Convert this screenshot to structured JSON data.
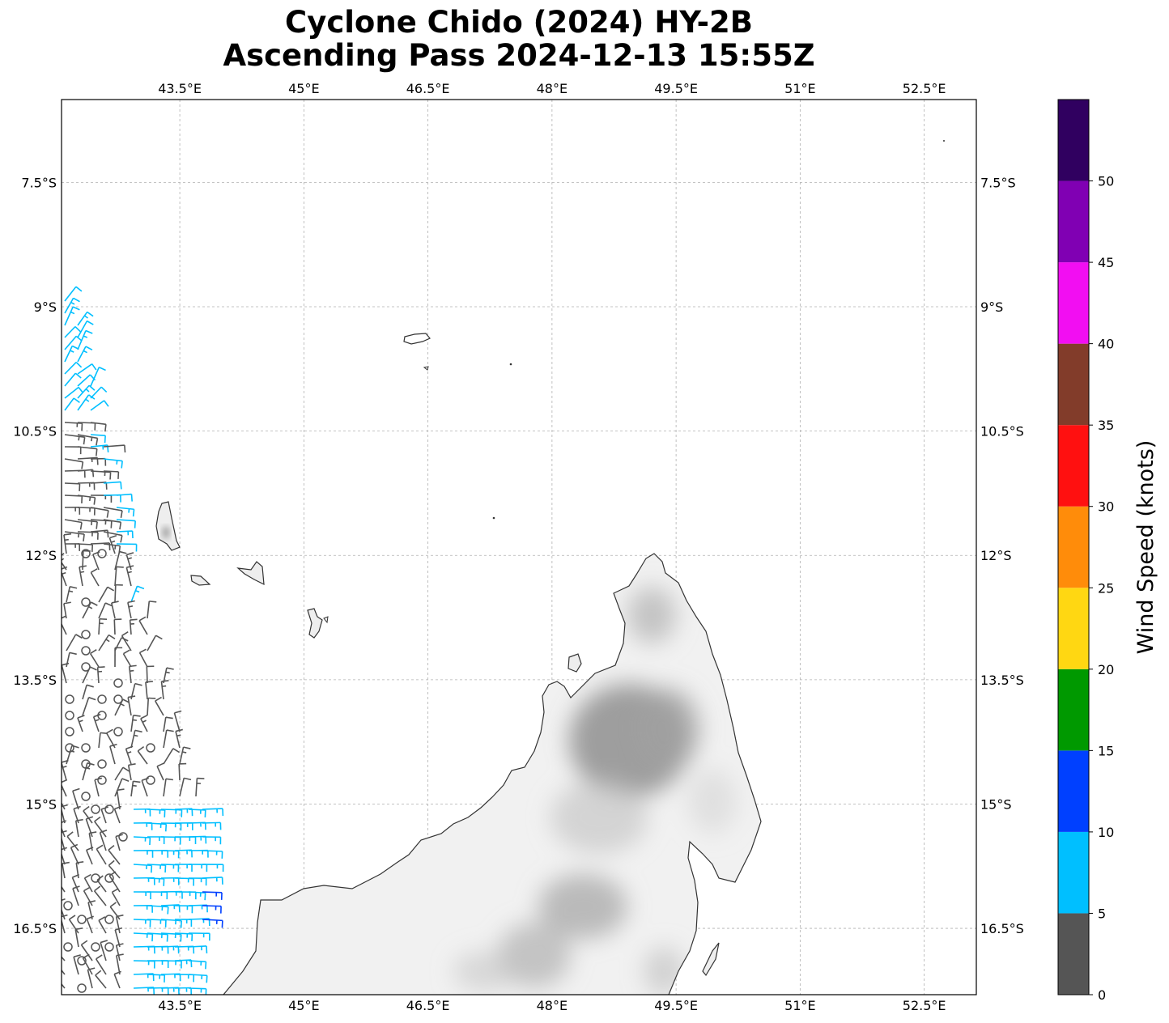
{
  "title": {
    "line1": "Cyclone Chido (2024) HY-2B",
    "line2": "Ascending Pass 2024-12-13 15:55Z"
  },
  "map": {
    "lon_range": [
      42.07,
      53.13
    ],
    "lat_range": [
      -17.3,
      -6.5
    ],
    "lon_ticks": [
      {
        "value": 43.5,
        "label": "43.5°E"
      },
      {
        "value": 45.0,
        "label": "45°E"
      },
      {
        "value": 46.5,
        "label": "46.5°E"
      },
      {
        "value": 48.0,
        "label": "48°E"
      },
      {
        "value": 49.5,
        "label": "49.5°E"
      },
      {
        "value": 51.0,
        "label": "51°E"
      },
      {
        "value": 52.5,
        "label": "52.5°E"
      }
    ],
    "lat_ticks": [
      {
        "value": -7.5,
        "label": "7.5°S"
      },
      {
        "value": -9.0,
        "label": "9°S"
      },
      {
        "value": -10.5,
        "label": "10.5°S"
      },
      {
        "value": -12.0,
        "label": "12°S"
      },
      {
        "value": -13.5,
        "label": "13.5°S"
      },
      {
        "value": -15.0,
        "label": "15°S"
      },
      {
        "value": -16.5,
        "label": "16.5°S"
      }
    ],
    "gridlines": true,
    "coastline_color": "#333333",
    "land_features": [
      "Grande Comore",
      "Mohéli",
      "Anjouan",
      "Mayotte",
      "Aldabra",
      "Madagascar (north)"
    ]
  },
  "colorbar": {
    "label": "Wind Speed (knots)",
    "bins": [
      {
        "min": 0,
        "max": 5,
        "color": "#555555"
      },
      {
        "min": 5,
        "max": 10,
        "color": "#00bfff"
      },
      {
        "min": 10,
        "max": 15,
        "color": "#0040ff"
      },
      {
        "min": 15,
        "max": 20,
        "color": "#009900"
      },
      {
        "min": 20,
        "max": 25,
        "color": "#ffd712"
      },
      {
        "min": 25,
        "max": 30,
        "color": "#ff8c0a"
      },
      {
        "min": 30,
        "max": 35,
        "color": "#ff1010"
      },
      {
        "min": 35,
        "max": 40,
        "color": "#823c2a"
      },
      {
        "min": 40,
        "max": 45,
        "color": "#f20ef2"
      },
      {
        "min": 45,
        "max": 50,
        "color": "#8000b3"
      },
      {
        "min": 50,
        "max": 55,
        "color": "#300060"
      }
    ],
    "tick_labels": [
      "0",
      "5",
      "10",
      "15",
      "20",
      "25",
      "30",
      "35",
      "40",
      "45",
      "50"
    ]
  },
  "wind_barbs_note": "swath of wind barbs along western edge, speeds mostly 0-15 knots"
}
